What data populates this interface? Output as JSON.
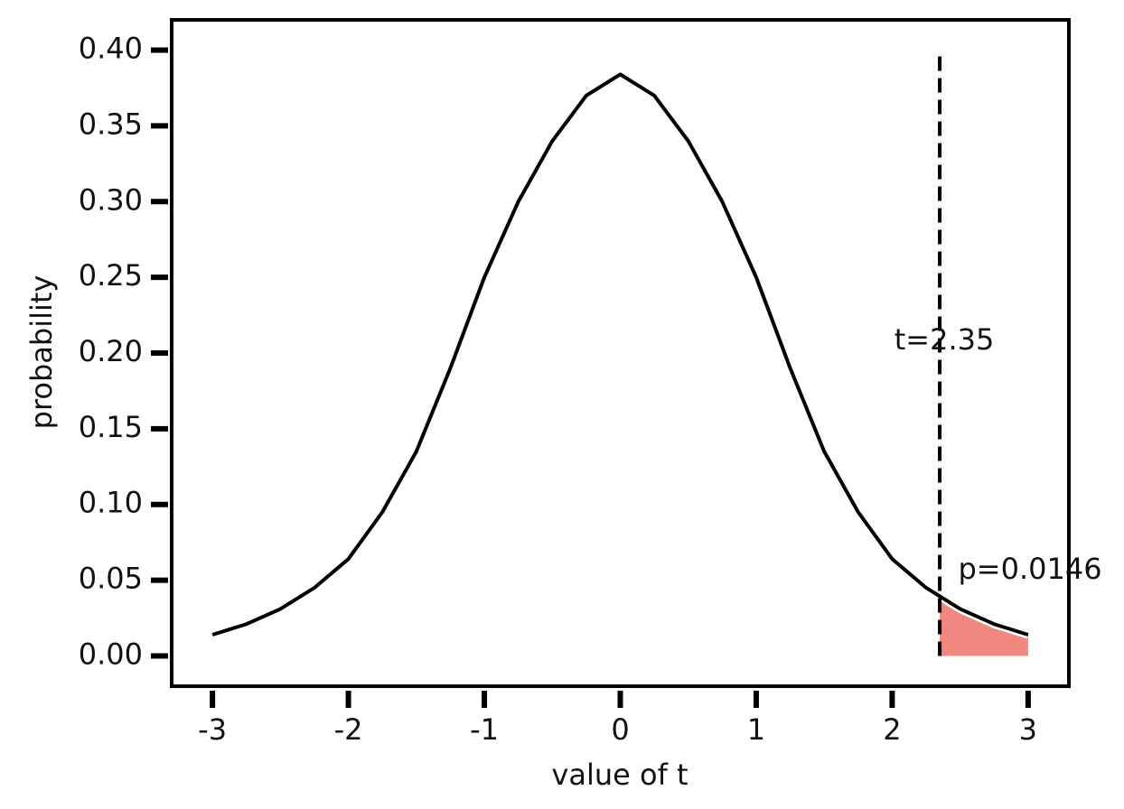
{
  "chart_data": {
    "type": "line",
    "xlabel": "value of t",
    "ylabel": "probability",
    "x": [
      -3,
      -2.75,
      -2.5,
      -2.25,
      -2,
      -1.75,
      -1.5,
      -1.25,
      -1,
      -0.75,
      -0.5,
      -0.25,
      0,
      0.25,
      0.5,
      0.75,
      1,
      1.25,
      1.5,
      1.75,
      2,
      2.25,
      2.5,
      2.75,
      3
    ],
    "values": [
      0.014,
      0.021,
      0.031,
      0.045,
      0.064,
      0.095,
      0.135,
      0.19,
      0.25,
      0.3,
      0.34,
      0.37,
      0.384,
      0.37,
      0.34,
      0.3,
      0.25,
      0.19,
      0.135,
      0.095,
      0.064,
      0.045,
      0.031,
      0.021,
      0.014
    ],
    "color": "#000000",
    "shade": {
      "x": [
        2.35,
        2.5,
        2.75,
        3
      ],
      "values": [
        0.04,
        0.031,
        0.021,
        0.014
      ],
      "color": "#f08880"
    },
    "vline": {
      "x": 2.35,
      "ymax": 0.4,
      "label": "t=2.35"
    },
    "p_label": "p=0.0146",
    "xlim": [
      -3.3,
      3.3
    ],
    "ylim": [
      -0.02,
      0.42
    ],
    "xticks": [
      -3,
      -2,
      -1,
      0,
      1,
      2,
      3
    ],
    "yticks": [
      {
        "value": 0,
        "label": "0.00"
      },
      {
        "value": 0.05,
        "label": "0.05"
      },
      {
        "value": 0.1,
        "label": "0.10"
      },
      {
        "value": 0.15,
        "label": "0.15"
      },
      {
        "value": 0.2,
        "label": "0.20"
      },
      {
        "value": 0.25,
        "label": "0.25"
      },
      {
        "value": 0.3,
        "label": "0.30"
      },
      {
        "value": 0.35,
        "label": "0.35"
      },
      {
        "value": 0.4,
        "label": "0.40"
      }
    ]
  }
}
